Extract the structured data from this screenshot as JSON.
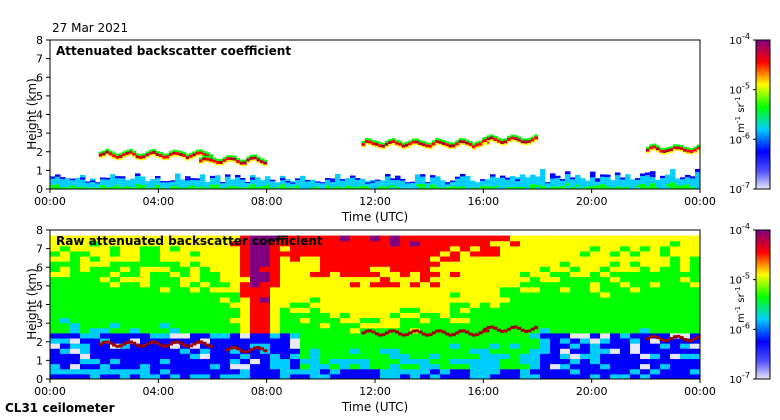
{
  "header": {
    "date": "27 Mar 2021",
    "instrument": "CL31 ceilometer"
  },
  "chart_data": [
    {
      "type": "heatmap",
      "title": "Attenuated backscatter coefficient",
      "xlabel": "Time (UTC)",
      "ylabel": "Height (km)",
      "xticks": [
        "00:00",
        "04:00",
        "08:00",
        "12:00",
        "16:00",
        "20:00",
        "00:00"
      ],
      "yticks": [
        "0",
        "1",
        "2",
        "3",
        "4",
        "5",
        "6",
        "7",
        "8"
      ],
      "xlim_hours": [
        0,
        24
      ],
      "ylim_km": [
        0,
        8
      ],
      "colorbar": {
        "scale": "log",
        "range": [
          1e-07,
          0.0001
        ],
        "tick_labels": [
          "10-7",
          "10-6",
          "10-5",
          "10-4"
        ],
        "unit_label": "m-1 sr-1"
      },
      "features": {
        "boundary_layer_top_km": 0.6,
        "cloud_layers": [
          {
            "start_hour": 1.8,
            "end_hour": 6.0,
            "height_km": 1.9
          },
          {
            "start_hour": 5.5,
            "end_hour": 8.0,
            "height_km": 1.6
          },
          {
            "start_hour": 11.5,
            "end_hour": 16.2,
            "height_km": 2.5
          },
          {
            "start_hour": 16.0,
            "end_hour": 18.0,
            "height_km": 2.7
          },
          {
            "start_hour": 22.0,
            "end_hour": 24.0,
            "height_km": 2.2
          }
        ]
      }
    },
    {
      "type": "heatmap",
      "title": "Raw attenuated backscatter coefficient",
      "xlabel": "Time (UTC)",
      "ylabel": "Height (km)",
      "xticks": [
        "00:00",
        "04:00",
        "08:00",
        "12:00",
        "16:00",
        "20:00",
        "00:00"
      ],
      "yticks": [
        "0",
        "1",
        "2",
        "3",
        "4",
        "5",
        "6",
        "7",
        "8"
      ],
      "xlim_hours": [
        0,
        24
      ],
      "ylim_km": [
        0,
        8
      ],
      "colorbar": {
        "scale": "log",
        "range": [
          1e-07,
          0.0001
        ],
        "tick_labels": [
          "10-7",
          "10-6",
          "10-5",
          "10-4"
        ],
        "unit_label": "m-1 sr-1"
      },
      "features": {
        "noise_top_km": 7.7,
        "cloud_layers": [
          {
            "start_hour": 1.8,
            "end_hour": 6.0,
            "height_km": 1.9
          },
          {
            "start_hour": 6.5,
            "end_hour": 8.0,
            "height_km": 1.6
          },
          {
            "start_hour": 11.5,
            "end_hour": 16.2,
            "height_km": 2.5
          },
          {
            "start_hour": 16.0,
            "end_hour": 18.0,
            "height_km": 2.7
          },
          {
            "start_hour": 22.0,
            "end_hour": 24.0,
            "height_km": 2.2
          }
        ]
      }
    }
  ],
  "colors": {
    "colormap": [
      "#e8e8f8",
      "#0000ff",
      "#00ccff",
      "#00ff00",
      "#ffff00",
      "#ff0000",
      "#800080"
    ]
  }
}
